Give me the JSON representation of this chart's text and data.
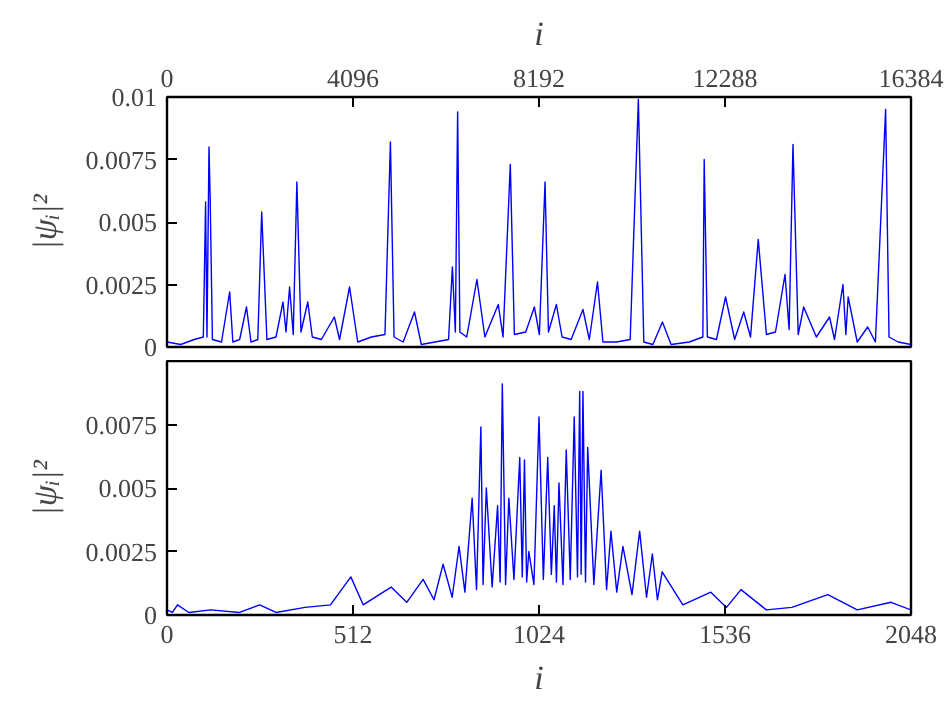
{
  "chart_data": [
    {
      "type": "line",
      "xlabel": "i",
      "ylabel": "|ψᵢ|²",
      "xlim": [
        0,
        16384
      ],
      "xticks": [
        0,
        4096,
        8192,
        12288,
        16384
      ],
      "ylim": [
        0,
        0.01
      ],
      "yticks": [
        0,
        0.0025,
        0.005,
        0.0075,
        0.01
      ],
      "grid": false,
      "series": [
        {
          "color": "#0000ff",
          "x": [
            0,
            300,
            600,
            800,
            850,
            880,
            925,
            950,
            1000,
            1200,
            1380,
            1450,
            1600,
            1750,
            1850,
            2000,
            2085,
            2200,
            2400,
            2555,
            2620,
            2700,
            2780,
            2860,
            2950,
            3100,
            3200,
            3400,
            3685,
            3800,
            4020,
            4200,
            4500,
            4800,
            4920,
            5000,
            5200,
            5450,
            5600,
            5900,
            6200,
            6285,
            6350,
            6400,
            6450,
            6600,
            6825,
            7000,
            7295,
            7400,
            7560,
            7650,
            7900,
            8090,
            8200,
            8325,
            8400,
            8575,
            8700,
            8900,
            9160,
            9300,
            9480,
            9600,
            9900,
            10200,
            10380,
            10500,
            10700,
            10910,
            11100,
            11500,
            11800,
            11830,
            11860,
            11900,
            12100,
            12300,
            12500,
            12700,
            12850,
            13020,
            13200,
            13400,
            13610,
            13700,
            13785,
            13900,
            14020,
            14300,
            14590,
            14700,
            14885,
            14950,
            15000,
            15200,
            15430,
            15600,
            15825,
            15900,
            16100,
            16384
          ],
          "values": [
            0.0002,
            0.0001,
            0.0003,
            0.0004,
            0.0058,
            0.0004,
            0.008,
            0.006,
            0.0003,
            0.0002,
            0.0022,
            0.0002,
            0.0003,
            0.0016,
            0.0002,
            0.0003,
            0.0054,
            0.0003,
            0.0004,
            0.0018,
            0.0006,
            0.0024,
            0.0005,
            0.0066,
            0.0006,
            0.0018,
            0.0004,
            0.0003,
            0.0012,
            0.0003,
            0.0024,
            0.0002,
            0.0004,
            0.0005,
            0.0082,
            0.0004,
            0.0002,
            0.0014,
            0.0001,
            0.0002,
            0.0003,
            0.0032,
            0.0006,
            0.0094,
            0.0006,
            0.0004,
            0.0027,
            0.0004,
            0.0017,
            0.0004,
            0.0073,
            0.0005,
            0.0006,
            0.0016,
            0.0005,
            0.0066,
            0.0006,
            0.0017,
            0.0004,
            0.0003,
            0.0015,
            0.0003,
            0.0026,
            0.0002,
            0.0002,
            0.0003,
            0.0099,
            0.0002,
            0.0001,
            0.001,
            0.0001,
            0.0002,
            0.0004,
            0.0075,
            0.0044,
            0.0004,
            0.0003,
            0.002,
            0.0003,
            0.0014,
            0.0004,
            0.0043,
            0.0005,
            0.0006,
            0.0029,
            0.0007,
            0.0081,
            0.0005,
            0.0016,
            0.0004,
            0.0012,
            0.0003,
            0.0025,
            0.0005,
            0.002,
            0.0002,
            0.0008,
            0.0002,
            0.0095,
            0.0004,
            0.0002,
            0.0001
          ]
        }
      ]
    },
    {
      "type": "line",
      "xlabel": "i",
      "ylabel": "|ψᵢ|²",
      "xlim": [
        0,
        2048
      ],
      "xticks": [
        0,
        512,
        1024,
        1536,
        2048
      ],
      "ylim": [
        0,
        0.01
      ],
      "yticks": [
        0,
        0.0025,
        0.005,
        0.0075
      ],
      "grid": false,
      "series": [
        {
          "color": "#0000ff",
          "x": [
            0,
            15,
            29,
            60,
            120,
            200,
            255,
            300,
            380,
            450,
            506,
            540,
            617,
            660,
            705,
            735,
            760,
            785,
            804,
            820,
            840,
            852,
            864,
            870,
            879,
            895,
            910,
            917,
            923,
            932,
            941,
            955,
            971,
            978,
            984,
            990,
            996,
            1010,
            1024,
            1036,
            1048,
            1058,
            1066,
            1072,
            1079,
            1090,
            1099,
            1110,
            1121,
            1130,
            1136,
            1140,
            1145,
            1152,
            1158,
            1175,
            1195,
            1210,
            1222,
            1238,
            1255,
            1280,
            1301,
            1320,
            1336,
            1350,
            1363,
            1420,
            1497,
            1540,
            1580,
            1650,
            1720,
            1819,
            1900,
            1993,
            2048
          ],
          "values": [
            0.0002,
            0.0001,
            0.0004,
            0.0001,
            0.0002,
            0.0001,
            0.0004,
            0.0001,
            0.0003,
            0.0004,
            0.0015,
            0.0004,
            0.0011,
            0.0005,
            0.0014,
            0.0006,
            0.002,
            0.0007,
            0.0027,
            0.0009,
            0.0046,
            0.001,
            0.0074,
            0.0012,
            0.005,
            0.0011,
            0.0043,
            0.0013,
            0.0091,
            0.0012,
            0.0046,
            0.0014,
            0.0062,
            0.0015,
            0.0061,
            0.0013,
            0.0025,
            0.0012,
            0.0078,
            0.0014,
            0.0062,
            0.0016,
            0.0043,
            0.0013,
            0.0052,
            0.0012,
            0.0065,
            0.0014,
            0.0078,
            0.0015,
            0.0088,
            0.0016,
            0.0088,
            0.0013,
            0.0066,
            0.0012,
            0.0057,
            0.001,
            0.0033,
            0.0009,
            0.0027,
            0.0008,
            0.0033,
            0.0007,
            0.0024,
            0.0006,
            0.0017,
            0.0004,
            0.0009,
            0.0003,
            0.001,
            0.0002,
            0.0003,
            0.0008,
            0.0002,
            0.0005,
            0.0002
          ]
        }
      ]
    }
  ]
}
